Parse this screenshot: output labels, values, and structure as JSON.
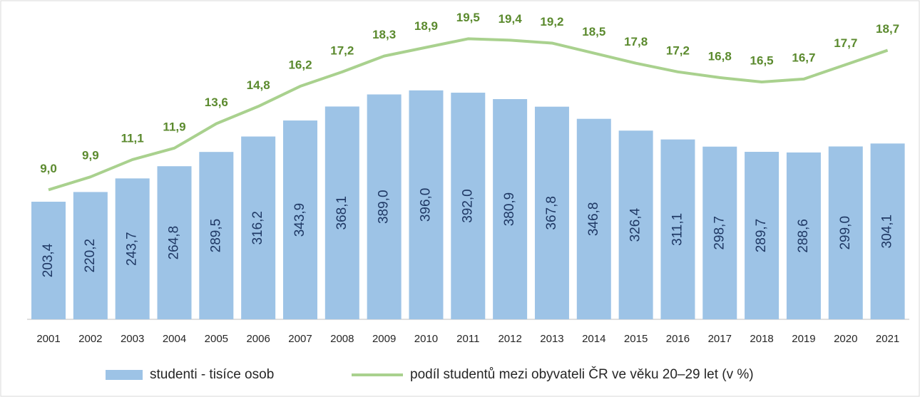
{
  "chart_data": {
    "type": "bar-line",
    "categories": [
      "2001",
      "2002",
      "2003",
      "2004",
      "2005",
      "2006",
      "2007",
      "2008",
      "2009",
      "2010",
      "2011",
      "2012",
      "2013",
      "2014",
      "2015",
      "2016",
      "2017",
      "2018",
      "2019",
      "2020",
      "2021"
    ],
    "series": [
      {
        "name": "studenti - tisíce osob",
        "type": "bar",
        "color": "#9dc3e6",
        "values": [
          203.4,
          220.2,
          243.7,
          264.8,
          289.5,
          316.2,
          343.9,
          368.1,
          389.0,
          396.0,
          392.0,
          380.9,
          367.8,
          346.8,
          326.4,
          311.1,
          298.7,
          289.7,
          288.6,
          299.0,
          304.1
        ],
        "value_labels": [
          "203,4",
          "220,2",
          "243,7",
          "264,8",
          "289,5",
          "316,2",
          "343,9",
          "368,1",
          "389,0",
          "396,0",
          "392,0",
          "380,9",
          "367,8",
          "346,8",
          "326,4",
          "311,1",
          "298,7",
          "289,7",
          "288,6",
          "299,0",
          "304,1"
        ]
      },
      {
        "name": "podíl studentů mezi obyvateli ČR ve věku 20–29 let (v %)",
        "type": "line",
        "color": "#a9d18e",
        "axis": "y2",
        "values": [
          9.0,
          9.9,
          11.1,
          11.9,
          13.6,
          14.8,
          16.2,
          17.2,
          18.3,
          18.9,
          19.5,
          19.4,
          19.2,
          18.5,
          17.8,
          17.2,
          16.8,
          16.5,
          16.7,
          17.7,
          18.7
        ],
        "value_labels": [
          "9,0",
          "9,9",
          "11,1",
          "11,9",
          "13,6",
          "14,8",
          "16,2",
          "17,2",
          "18,3",
          "18,9",
          "19,5",
          "19,4",
          "19,2",
          "18,5",
          "17,8",
          "17,2",
          "16,8",
          "16,5",
          "16,7",
          "17,7",
          "18,7"
        ]
      }
    ],
    "ylim": [
      0,
      540
    ],
    "y2lim": [
      0,
      21.7
    ],
    "legend": "bottom"
  }
}
